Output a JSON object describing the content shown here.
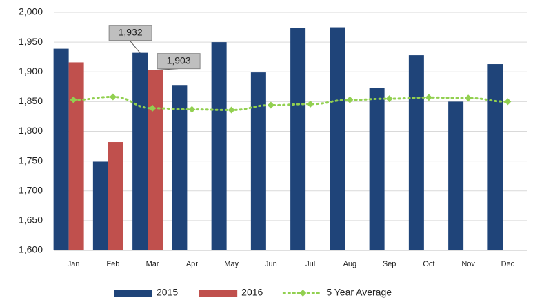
{
  "chart_data": {
    "type": "bar",
    "categories": [
      "Jan",
      "Feb",
      "Mar",
      "Apr",
      "May",
      "Jun",
      "Jul",
      "Aug",
      "Sep",
      "Oct",
      "Nov",
      "Dec"
    ],
    "series": [
      {
        "name": "2015",
        "type": "bar",
        "color": "#1f4479",
        "values": [
          1939,
          1749,
          1932,
          1878,
          1950,
          1899,
          1974,
          1975,
          1873,
          1928,
          1850,
          1913
        ],
        "value_labels": [
          null,
          null,
          "1,932",
          null,
          null,
          null,
          null,
          null,
          null,
          null,
          null,
          null
        ]
      },
      {
        "name": "2016",
        "type": "bar",
        "color": "#c0504d",
        "values": [
          1916,
          1782,
          1903,
          null,
          null,
          null,
          null,
          null,
          null,
          null,
          null,
          null
        ],
        "value_labels": [
          null,
          null,
          "1,903",
          null,
          null,
          null,
          null,
          null,
          null,
          null,
          null,
          null
        ]
      },
      {
        "name": "5 Year Average",
        "type": "line",
        "color": "#92d050",
        "values": [
          1853,
          1858,
          1839,
          1837,
          1836,
          1844,
          1846,
          1853,
          1855,
          1857,
          1856,
          1850
        ]
      }
    ],
    "ylim": [
      1600,
      2000
    ],
    "yticks": [
      {
        "value": 1600,
        "label": "1,600"
      },
      {
        "value": 1650,
        "label": "1,650"
      },
      {
        "value": 1700,
        "label": "1,700"
      },
      {
        "value": 1750,
        "label": "1,750"
      },
      {
        "value": 1800,
        "label": "1,800"
      },
      {
        "value": 1850,
        "label": "1,850"
      },
      {
        "value": 1900,
        "label": "1,900"
      },
      {
        "value": 1950,
        "label": "1,950"
      },
      {
        "value": 2000,
        "label": "2,000"
      }
    ],
    "grid": true,
    "legend": "bottom"
  }
}
